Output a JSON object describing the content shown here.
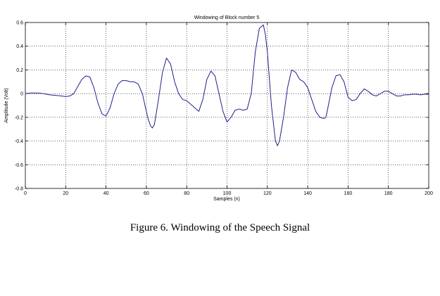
{
  "chart_data": {
    "type": "line",
    "title": "Windowing of Block number 5",
    "xlabel": "Samples (n)",
    "ylabel": "Amplitude (Volt)",
    "xlim": [
      0,
      200
    ],
    "ylim": [
      -0.8,
      0.6
    ],
    "xticks": [
      0,
      20,
      40,
      60,
      80,
      100,
      120,
      140,
      160,
      180,
      200
    ],
    "yticks": [
      -0.8,
      -0.6,
      -0.4,
      -0.2,
      0,
      0.2,
      0.4,
      0.6
    ],
    "ytick_labels": [
      "-0.8",
      "-0.6",
      "-0.4",
      "-0.2",
      "0",
      "0.2",
      "0.4",
      "0.6"
    ],
    "grid": true,
    "line_color": "#1f1f8f",
    "series": [
      {
        "x": [
          0,
          3,
          6,
          9,
          12,
          15,
          18,
          20,
          22,
          24,
          26,
          28,
          30,
          32,
          34,
          36,
          38,
          40,
          42,
          44,
          46,
          48,
          50,
          52,
          54,
          56,
          58,
          60,
          61,
          62,
          63,
          64,
          66,
          68,
          70,
          72,
          74,
          76,
          78,
          80,
          82,
          84,
          86,
          88,
          90,
          92,
          94,
          96,
          98,
          100,
          102,
          104,
          106,
          108,
          110,
          112,
          114,
          116,
          118,
          119,
          120,
          122,
          124,
          125,
          126,
          128,
          130,
          132,
          134,
          136,
          138,
          140,
          142,
          144,
          146,
          148,
          149,
          150,
          152,
          154,
          156,
          158,
          160,
          162,
          164,
          166,
          168,
          170,
          172,
          174,
          176,
          178,
          180,
          182,
          184,
          186,
          188,
          190,
          192,
          194,
          196,
          198,
          200
        ],
        "y": [
          0.0,
          0.005,
          0.005,
          0.0,
          -0.01,
          -0.015,
          -0.02,
          -0.025,
          -0.02,
          0.0,
          0.06,
          0.12,
          0.15,
          0.14,
          0.05,
          -0.08,
          -0.17,
          -0.19,
          -0.12,
          0.0,
          0.08,
          0.11,
          0.11,
          0.1,
          0.1,
          0.08,
          0.0,
          -0.15,
          -0.22,
          -0.27,
          -0.29,
          -0.26,
          -0.05,
          0.18,
          0.3,
          0.25,
          0.1,
          0.0,
          -0.05,
          -0.06,
          -0.09,
          -0.12,
          -0.15,
          -0.05,
          0.12,
          0.19,
          0.15,
          0.0,
          -0.15,
          -0.24,
          -0.2,
          -0.14,
          -0.13,
          -0.14,
          -0.13,
          0.0,
          0.35,
          0.55,
          0.58,
          0.5,
          0.35,
          -0.1,
          -0.4,
          -0.44,
          -0.4,
          -0.2,
          0.05,
          0.2,
          0.18,
          0.12,
          0.1,
          0.05,
          -0.05,
          -0.15,
          -0.2,
          -0.21,
          -0.2,
          -0.12,
          0.05,
          0.15,
          0.16,
          0.1,
          -0.03,
          -0.06,
          -0.05,
          0.0,
          0.04,
          0.02,
          -0.01,
          -0.02,
          0.0,
          0.02,
          0.02,
          0.0,
          -0.02,
          -0.02,
          -0.01,
          -0.01,
          -0.005,
          -0.005,
          -0.01,
          -0.005,
          -0.005
        ]
      }
    ]
  },
  "caption": "Figure 6. Windowing of the Speech Signal"
}
